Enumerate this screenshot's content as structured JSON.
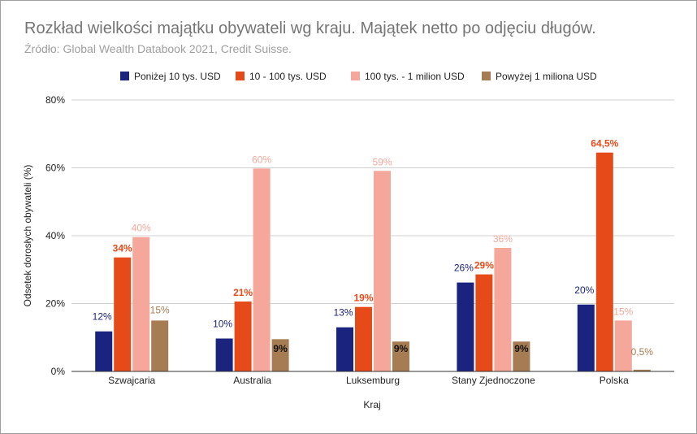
{
  "title": "Rozkład wielkości majątku obywateli wg kraju. Majątek netto po odjęciu długów.",
  "subtitle": "Źródło: Global Wealth Databook 2021, Credit Suisse.",
  "chart_data": {
    "type": "bar",
    "xlabel": "Kraj",
    "ylabel": "Odsetek dorosłych obywateli (%)",
    "ylim": [
      0,
      80
    ],
    "yticks": [
      "0%",
      "20%",
      "40%",
      "60%",
      "80%"
    ],
    "ytick_values": [
      0,
      20,
      40,
      60,
      80
    ],
    "grid": true,
    "legend_position": "top",
    "categories": [
      "Szwajcaria",
      "Australia",
      "Luksemburg",
      "Stany Zjednoczone",
      "Polska"
    ],
    "series": [
      {
        "name": "Poniżej 10 tys. USD",
        "color": "#1a237e",
        "values": [
          11.8,
          9.7,
          13.0,
          26.2,
          19.7
        ],
        "labels": [
          "12%",
          "10%",
          "13%",
          "26%",
          "20%"
        ]
      },
      {
        "name": "10 - 100 tys. USD",
        "color": "#e64a19",
        "values": [
          33.6,
          20.6,
          19.0,
          28.6,
          64.5
        ],
        "labels": [
          "34%",
          "21%",
          "19%",
          "29%",
          "64,5%"
        ]
      },
      {
        "name": "100 tys. - 1 milion USD",
        "color": "#f4a79a",
        "values": [
          39.6,
          59.8,
          59.1,
          36.4,
          15.0
        ],
        "labels": [
          "40%",
          "60%",
          "59%",
          "36%",
          "15%"
        ]
      },
      {
        "name": "Powyżej 1 miliona USD",
        "color": "#a67c52",
        "values": [
          15.0,
          9.5,
          8.8,
          8.8,
          0.5
        ],
        "labels": [
          "15%",
          "9%",
          "9%",
          "9%",
          "0,5%"
        ]
      }
    ]
  }
}
